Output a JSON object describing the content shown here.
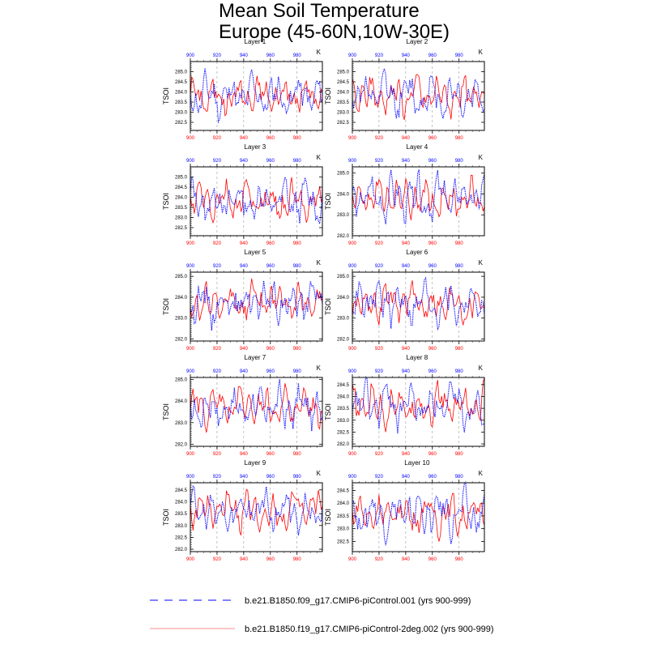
{
  "title_line1": "Mean Soil Temperature",
  "title_line2": "Europe (45-60N,10W-30E)",
  "colors": {
    "series_a": "#0000ff",
    "series_b": "#ff0000",
    "grid": "#888888"
  },
  "legend": [
    {
      "label": "b.e21.B1850.f09_g17.CMIP6-piControl.001 (yrs 900-999)",
      "style": "dashed",
      "color": "#0000ff"
    },
    {
      "label": "b.e21.B1850.f19_g17.CMIP6-piControl-2deg.002 (yrs 900-999)",
      "style": "solid",
      "color": "#ff0000"
    }
  ],
  "chart_data": [
    {
      "type": "line",
      "title": "Layer 1",
      "ylabel": "TSOI",
      "units": "K",
      "xlim": [
        900,
        999
      ],
      "ylim": [
        282.1,
        285.5
      ],
      "yticks": [
        "282.5",
        "283.0",
        "283.5",
        "284.0",
        "284.5",
        "285.0"
      ],
      "xticks": [
        "900",
        "920",
        "940",
        "960",
        "980"
      ],
      "top_xticks": [
        "900",
        "920",
        "940",
        "960",
        "980"
      ],
      "x": [
        900,
        999
      ],
      "mean": 283.8,
      "amp": 0.55,
      "seed_a": 11,
      "seed_b": 101,
      "series": [
        {
          "name": "b.e21.B1850.f09_g17.CMIP6-piControl.001",
          "color": "#0000ff"
        },
        {
          "name": "b.e21.B1850.f19_g17.CMIP6-piControl-2deg.002",
          "color": "#ff0000"
        }
      ]
    },
    {
      "type": "line",
      "title": "Layer 2",
      "ylabel": "TSOI",
      "units": "K",
      "xlim": [
        900,
        999
      ],
      "ylim": [
        282.1,
        285.5
      ],
      "yticks": [
        "282.5",
        "283.0",
        "283.5",
        "284.0",
        "284.5",
        "285.0"
      ],
      "xticks": [
        "900",
        "920",
        "940",
        "960",
        "980"
      ],
      "top_xticks": [
        "900",
        "920",
        "940",
        "960",
        "980"
      ],
      "mean": 283.8,
      "amp": 0.55,
      "seed_a": 12,
      "seed_b": 102,
      "series": [
        {
          "name": "b.e21.B1850.f09_g17.CMIP6-piControl.001",
          "color": "#0000ff"
        },
        {
          "name": "b.e21.B1850.f19_g17.CMIP6-piControl-2deg.002",
          "color": "#ff0000"
        }
      ]
    },
    {
      "type": "line",
      "title": "Layer 3",
      "ylabel": "TSOI",
      "units": "K",
      "xlim": [
        900,
        999
      ],
      "ylim": [
        282.1,
        285.5
      ],
      "yticks": [
        "282.5",
        "283.0",
        "283.5",
        "284.0",
        "284.5",
        "285.0"
      ],
      "xticks": [
        "900",
        "920",
        "940",
        "960",
        "980"
      ],
      "top_xticks": [
        "900",
        "920",
        "940",
        "960",
        "980"
      ],
      "mean": 283.8,
      "amp": 0.55,
      "seed_a": 13,
      "seed_b": 103,
      "series": [
        {
          "name": "b.e21.B1850.f09_g17.CMIP6-piControl.001",
          "color": "#0000ff"
        },
        {
          "name": "b.e21.B1850.f19_g17.CMIP6-piControl-2deg.002",
          "color": "#ff0000"
        }
      ]
    },
    {
      "type": "line",
      "title": "Layer 4",
      "ylabel": "TSOI",
      "units": "K",
      "xlim": [
        900,
        999
      ],
      "ylim": [
        282.0,
        285.3
      ],
      "yticks": [
        "282.0",
        "283.0",
        "284.0",
        "285.0"
      ],
      "xticks": [
        "900",
        "920",
        "940",
        "960",
        "980"
      ],
      "top_xticks": [
        "900",
        "920",
        "940",
        "960",
        "980"
      ],
      "mean": 283.8,
      "amp": 0.55,
      "seed_a": 14,
      "seed_b": 104,
      "series": [
        {
          "name": "b.e21.B1850.f09_g17.CMIP6-piControl.001",
          "color": "#0000ff"
        },
        {
          "name": "b.e21.B1850.f19_g17.CMIP6-piControl-2deg.002",
          "color": "#ff0000"
        }
      ]
    },
    {
      "type": "line",
      "title": "Layer 5",
      "ylabel": "TSOI",
      "units": "K",
      "xlim": [
        900,
        999
      ],
      "ylim": [
        281.9,
        285.2
      ],
      "yticks": [
        "282.0",
        "283.0",
        "284.0",
        "285.0"
      ],
      "xticks": [
        "900",
        "920",
        "940",
        "960",
        "980"
      ],
      "top_xticks": [
        "900",
        "920",
        "940",
        "960",
        "980"
      ],
      "mean": 283.75,
      "amp": 0.55,
      "seed_a": 15,
      "seed_b": 105,
      "series": [
        {
          "name": "b.e21.B1850.f09_g17.CMIP6-piControl.001",
          "color": "#0000ff"
        },
        {
          "name": "b.e21.B1850.f19_g17.CMIP6-piControl-2deg.002",
          "color": "#ff0000"
        }
      ]
    },
    {
      "type": "line",
      "title": "Layer 6",
      "ylabel": "TSOI",
      "units": "K",
      "xlim": [
        900,
        999
      ],
      "ylim": [
        281.9,
        285.2
      ],
      "yticks": [
        "282.0",
        "283.0",
        "284.0",
        "285.0"
      ],
      "xticks": [
        "900",
        "920",
        "940",
        "960",
        "980"
      ],
      "top_xticks": [
        "900",
        "920",
        "940",
        "960",
        "980"
      ],
      "mean": 283.75,
      "amp": 0.55,
      "seed_a": 16,
      "seed_b": 106,
      "series": [
        {
          "name": "b.e21.B1850.f09_g17.CMIP6-piControl.001",
          "color": "#0000ff"
        },
        {
          "name": "b.e21.B1850.f19_g17.CMIP6-piControl-2deg.002",
          "color": "#ff0000"
        }
      ]
    },
    {
      "type": "line",
      "title": "Layer 7",
      "ylabel": "TSOI",
      "units": "K",
      "xlim": [
        900,
        999
      ],
      "ylim": [
        281.9,
        285.1
      ],
      "yticks": [
        "282.0",
        "283.0",
        "284.0",
        "285.0"
      ],
      "xticks": [
        "900",
        "920",
        "940",
        "960",
        "980"
      ],
      "top_xticks": [
        "900",
        "920",
        "940",
        "960",
        "980"
      ],
      "mean": 283.7,
      "amp": 0.5,
      "seed_a": 17,
      "seed_b": 107,
      "series": [
        {
          "name": "b.e21.B1850.f09_g17.CMIP6-piControl.001",
          "color": "#0000ff"
        },
        {
          "name": "b.e21.B1850.f19_g17.CMIP6-piControl-2deg.002",
          "color": "#ff0000"
        }
      ]
    },
    {
      "type": "line",
      "title": "Layer 8",
      "ylabel": "TSOI",
      "units": "K",
      "xlim": [
        900,
        999
      ],
      "ylim": [
        281.9,
        284.8
      ],
      "yticks": [
        "282.0",
        "282.5",
        "283.0",
        "283.5",
        "284.0",
        "284.5"
      ],
      "xticks": [
        "900",
        "920",
        "940",
        "960",
        "980"
      ],
      "top_xticks": [
        "900",
        "920",
        "940",
        "960",
        "980"
      ],
      "mean": 283.65,
      "amp": 0.5,
      "seed_a": 18,
      "seed_b": 108,
      "series": [
        {
          "name": "b.e21.B1850.f09_g17.CMIP6-piControl.001",
          "color": "#0000ff"
        },
        {
          "name": "b.e21.B1850.f19_g17.CMIP6-piControl-2deg.002",
          "color": "#ff0000"
        }
      ]
    },
    {
      "type": "line",
      "title": "Layer 9",
      "ylabel": "TSOI",
      "units": "K",
      "xlim": [
        900,
        999
      ],
      "ylim": [
        281.9,
        284.8
      ],
      "yticks": [
        "282.0",
        "282.5",
        "283.0",
        "283.5",
        "284.0",
        "284.5"
      ],
      "xticks": [
        "900",
        "920",
        "940",
        "960",
        "980"
      ],
      "top_xticks": [
        "900",
        "920",
        "940",
        "960",
        "980"
      ],
      "mean": 283.6,
      "amp": 0.48,
      "seed_a": 19,
      "seed_b": 109,
      "series": [
        {
          "name": "b.e21.B1850.f09_g17.CMIP6-piControl.001",
          "color": "#0000ff"
        },
        {
          "name": "b.e21.B1850.f19_g17.CMIP6-piControl-2deg.002",
          "color": "#ff0000"
        }
      ]
    },
    {
      "type": "line",
      "title": "Layer 10",
      "ylabel": "TSOI",
      "units": "K",
      "xlim": [
        900,
        999
      ],
      "ylim": [
        282.1,
        284.8
      ],
      "yticks": [
        "282.5",
        "283.0",
        "283.5",
        "284.0",
        "284.5"
      ],
      "xticks": [
        "900",
        "920",
        "940",
        "960",
        "980"
      ],
      "top_xticks": [
        "900",
        "920",
        "940",
        "960",
        "980"
      ],
      "mean": 283.6,
      "amp": 0.45,
      "seed_a": 20,
      "seed_b": 110,
      "series": [
        {
          "name": "b.e21.B1850.f09_g17.CMIP6-piControl.001",
          "color": "#0000ff"
        },
        {
          "name": "b.e21.B1850.f19_g17.CMIP6-piControl-2deg.002",
          "color": "#ff0000"
        }
      ]
    }
  ]
}
